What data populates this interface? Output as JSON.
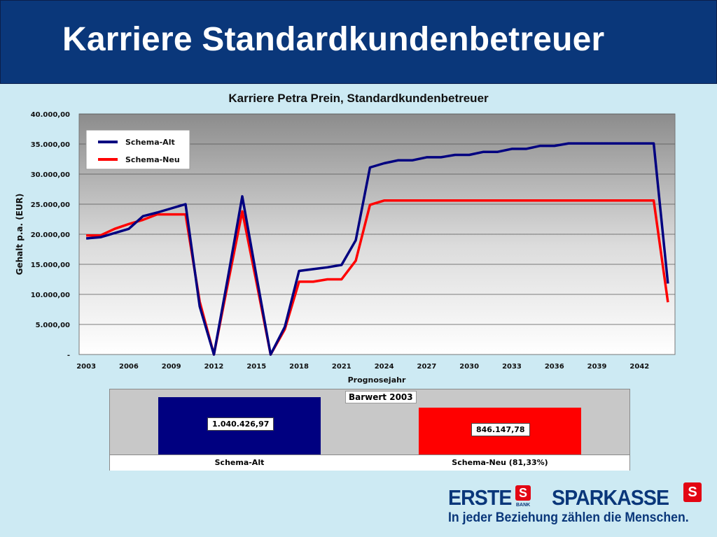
{
  "slide": {
    "title": "Karriere Standardkundenbetreuer",
    "colors": {
      "header_bg": "#0a377a",
      "page_bg": "#cdeaf3"
    }
  },
  "chart_data": [
    {
      "type": "line",
      "title": "Karriere Petra Prein, Standardkundenbetreuer",
      "xlabel": "Prognosejahr",
      "ylabel": "Gehalt p.a. (EUR)",
      "ylim": [
        0,
        40000
      ],
      "yticks": [
        "-",
        "5.000,00",
        "10.000,00",
        "15.000,00",
        "20.000,00",
        "25.000,00",
        "30.000,00",
        "35.000,00",
        "40.000,00"
      ],
      "xticks": [
        "2003",
        "2006",
        "2009",
        "2012",
        "2015",
        "2018",
        "2021",
        "2024",
        "2027",
        "2030",
        "2033",
        "2036",
        "2039",
        "2042"
      ],
      "x": [
        2003,
        2004,
        2005,
        2006,
        2007,
        2008,
        2009,
        2010,
        2011,
        2012,
        2013,
        2014,
        2015,
        2016,
        2017,
        2018,
        2019,
        2020,
        2021,
        2022,
        2023,
        2024,
        2025,
        2026,
        2027,
        2028,
        2029,
        2030,
        2031,
        2032,
        2033,
        2034,
        2035,
        2036,
        2037,
        2038,
        2039,
        2040,
        2041,
        2042,
        2043,
        2044
      ],
      "series": [
        {
          "name": "Schema-Alt",
          "color": "#000080",
          "values": [
            19300,
            19500,
            20200,
            20900,
            23000,
            23600,
            24300,
            25000,
            8000,
            0,
            13000,
            26300,
            13000,
            0,
            4600,
            13900,
            14200,
            14500,
            14900,
            19000,
            31100,
            31800,
            32300,
            32300,
            32800,
            32800,
            33200,
            33200,
            33700,
            33700,
            34200,
            34200,
            34700,
            34700,
            35100,
            35100,
            35100,
            35100,
            35100,
            35100,
            35100,
            11800
          ]
        },
        {
          "name": "Schema-Neu",
          "color": "#ff0000",
          "values": [
            19800,
            19800,
            20900,
            21700,
            22400,
            23300,
            23300,
            23300,
            8800,
            0,
            12000,
            23800,
            12000,
            0,
            4200,
            12100,
            12100,
            12500,
            12500,
            15600,
            24900,
            25600,
            25600,
            25600,
            25600,
            25600,
            25600,
            25600,
            25600,
            25600,
            25600,
            25600,
            25600,
            25600,
            25600,
            25600,
            25600,
            25600,
            25600,
            25600,
            25600,
            8700
          ]
        }
      ],
      "legend": "top-left",
      "grid": true
    },
    {
      "type": "bar",
      "title": "Barwert 2003",
      "categories": [
        "Schema-Alt",
        "Schema-Neu (81,33%)"
      ],
      "values": [
        1040426.97,
        846147.78
      ],
      "value_labels": [
        "1.040.426,97",
        "846.147,78"
      ],
      "colors": [
        "#000080",
        "#ff0000"
      ]
    }
  ],
  "logo": {
    "erste": "ERSTE",
    "bank": "BANK",
    "sparkasse": "SPARKASSE",
    "s_mark": "S",
    "slogan": "In jeder Beziehung zählen die Menschen."
  }
}
